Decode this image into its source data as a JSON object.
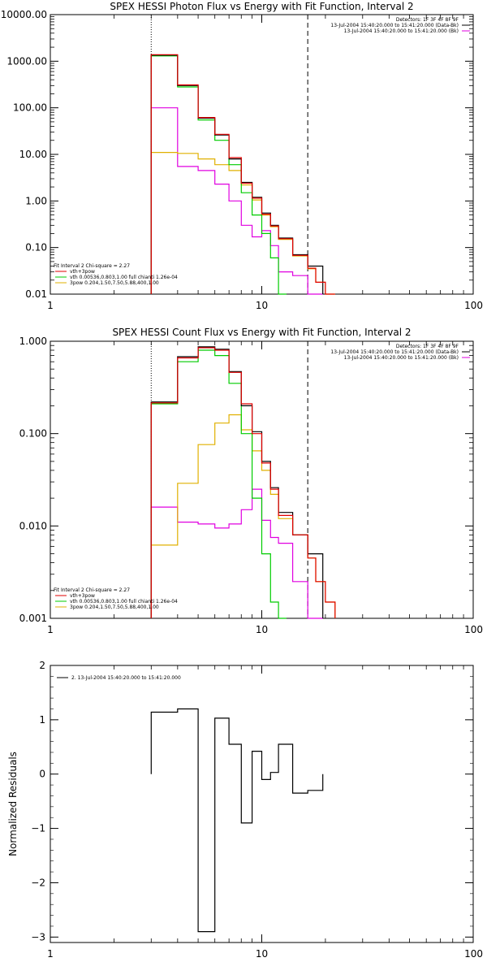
{
  "chart_data": [
    {
      "type": "line",
      "title": "SPEX HESSI Photon Flux vs Energy with Fit Function, Interval 2",
      "xlabel": "",
      "ylabel": "",
      "xscale": "log",
      "yscale": "log",
      "xlim": [
        1,
        100
      ],
      "ylim": [
        0.01,
        10000
      ],
      "xticks": [
        "1",
        "10",
        "100"
      ],
      "yticks": [
        "10000.00",
        "1000.00",
        "100.00",
        "10.00",
        "1.00",
        "0.10",
        "0.01"
      ],
      "vlines": [
        {
          "x": 3,
          "style": "dotted"
        },
        {
          "x": 16.5,
          "style": "dashed"
        }
      ],
      "legend_top_right": [
        "Detectors: 1F 3F 4F 8F 9F",
        "13-Jul-2004 15:40:20.000 to 15:41:20.000 (Data-Bk)",
        "13-Jul-2004 15:40:20.000 to 15:41:20.000 (Bk)"
      ],
      "legend_bottom_left": [
        "Fit Interval 2   Chi-square = 2.27",
        "vth+3pow",
        "vth 0.00536,0.803,1.00   full chianti 1.26e-04",
        "3pow 0.204,1.50,7.50,5.88,400,1.00"
      ],
      "series": [
        {
          "name": "Data-Bk",
          "color": "#000000",
          "x": [
            3,
            4,
            5,
            6,
            7,
            8,
            9,
            10,
            11,
            12,
            14,
            16.5
          ],
          "values": [
            1350,
            300,
            60,
            26,
            8,
            2.5,
            1.2,
            0.55,
            0.3,
            0.16,
            0.07,
            0.04
          ]
        },
        {
          "name": "vth+3pow",
          "color": "#e00000",
          "x": [
            3,
            4,
            5,
            6,
            7,
            8,
            9,
            10,
            11,
            12,
            14,
            16.5,
            18,
            20
          ],
          "values": [
            1380,
            310,
            62,
            27,
            8.5,
            2.4,
            1.15,
            0.52,
            0.29,
            0.155,
            0.068,
            0.036,
            0.018,
            0.01
          ]
        },
        {
          "name": "vth",
          "color": "#00cc00",
          "x": [
            3,
            4,
            5,
            6,
            7,
            8,
            9,
            10,
            11,
            12
          ],
          "values": [
            1300,
            280,
            55,
            20,
            6,
            1.5,
            0.5,
            0.2,
            0.06,
            0.008
          ]
        },
        {
          "name": "3pow",
          "color": "#e0b000",
          "x": [
            3,
            4,
            5,
            6,
            7,
            8,
            9,
            10,
            11,
            12,
            14,
            16.5,
            18,
            20
          ],
          "values": [
            11,
            10.5,
            8,
            6,
            4.5,
            2.2,
            1.05,
            0.5,
            0.28,
            0.15,
            0.066,
            0.035,
            0.018,
            0.01
          ]
        },
        {
          "name": "Bk",
          "color": "#e000e0",
          "x": [
            3,
            4,
            5,
            6,
            7,
            8,
            9,
            10,
            11,
            12,
            14,
            16.5
          ],
          "values": [
            100,
            5.5,
            4.5,
            2.3,
            1.0,
            0.3,
            0.17,
            0.23,
            0.11,
            0.03,
            0.025,
            0.007
          ]
        }
      ]
    },
    {
      "type": "line",
      "title": "SPEX HESSI Count Flux vs Energy with Fit Function, Interval 2",
      "xlabel": "",
      "ylabel": "",
      "xscale": "log",
      "yscale": "log",
      "xlim": [
        1,
        100
      ],
      "ylim": [
        0.001,
        1
      ],
      "xticks": [
        "1",
        "10",
        "100"
      ],
      "yticks": [
        "1.000",
        "0.100",
        "0.010",
        "0.001"
      ],
      "vlines": [
        {
          "x": 3,
          "style": "dotted"
        },
        {
          "x": 16.5,
          "style": "dashed"
        }
      ],
      "legend_top_right": [
        "Detectors: 1F 3F 4F 8F 9F",
        "13-Jul-2004 15:40:20.000 to 15:41:20.000 (Data-Bk)",
        "13-Jul-2004 15:40:20.000 to 15:41:20.000 (Bk)"
      ],
      "legend_bottom_left": [
        "Fit Interval 2   Chi-square = 2.27",
        "vth+3pow",
        "vth 0.00536,0.803,1.00   full chianti 1.26e-04",
        "3pow 0.204,1.50,7.50,5.88,400,1.00"
      ],
      "series": [
        {
          "name": "Data-Bk",
          "color": "#000000",
          "x": [
            3,
            4,
            5,
            6,
            7,
            8,
            9,
            10,
            11,
            12,
            14,
            16.5
          ],
          "values": [
            0.22,
            0.68,
            0.87,
            0.82,
            0.47,
            0.2,
            0.105,
            0.05,
            0.026,
            0.014,
            0.008,
            0.005
          ]
        },
        {
          "name": "vth+3pow",
          "color": "#e00000",
          "x": [
            3,
            4,
            5,
            6,
            7,
            8,
            9,
            10,
            11,
            12,
            14,
            16.5,
            18,
            20
          ],
          "values": [
            0.215,
            0.66,
            0.85,
            0.8,
            0.46,
            0.21,
            0.1,
            0.048,
            0.025,
            0.013,
            0.008,
            0.0045,
            0.0025,
            0.0015
          ]
        },
        {
          "name": "vth",
          "color": "#00cc00",
          "x": [
            3,
            4,
            5,
            6,
            7,
            8,
            9,
            10,
            11,
            12
          ],
          "values": [
            0.21,
            0.6,
            0.8,
            0.7,
            0.35,
            0.1,
            0.02,
            0.005,
            0.0015,
            0.0009
          ]
        },
        {
          "name": "3pow",
          "color": "#e0b000",
          "x": [
            3,
            4,
            5,
            6,
            7,
            8,
            9,
            10,
            11,
            12,
            14,
            16.5,
            18,
            20
          ],
          "values": [
            0.0062,
            0.029,
            0.076,
            0.13,
            0.16,
            0.11,
            0.065,
            0.04,
            0.022,
            0.012,
            0.008,
            0.0045,
            0.0025,
            0.0015
          ]
        },
        {
          "name": "Bk",
          "color": "#e000e0",
          "x": [
            3,
            4,
            5,
            6,
            7,
            8,
            9,
            10,
            11,
            12,
            14,
            16.5
          ],
          "values": [
            0.016,
            0.011,
            0.0105,
            0.0095,
            0.0105,
            0.015,
            0.025,
            0.0115,
            0.0075,
            0.0065,
            0.0025,
            0.0009
          ]
        }
      ]
    },
    {
      "type": "line",
      "title": "",
      "xlabel": "",
      "ylabel": "Normalized Residuals",
      "xscale": "log",
      "yscale": "linear",
      "xlim": [
        1,
        100
      ],
      "ylim": [
        -3.1,
        2
      ],
      "xticks": [
        "1",
        "10",
        "100"
      ],
      "yticks": [
        "2",
        "1",
        "0",
        "−1",
        "−2",
        "−3"
      ],
      "legend": [
        "2. 13-Jul-2004 15:40:20.000 to 15:41:20.000"
      ],
      "series": [
        {
          "name": "2. 13-Jul-2004 15:40:20.000 to 15:41:20.000",
          "color": "#000000",
          "x": [
            3,
            4,
            5,
            6,
            7,
            8,
            9,
            10,
            11,
            12,
            14,
            16.5
          ],
          "values": [
            1.14,
            1.2,
            -2.9,
            1.03,
            0.55,
            -0.9,
            0.42,
            -0.1,
            0.03,
            0.55,
            -0.35,
            -0.3
          ]
        }
      ]
    }
  ]
}
